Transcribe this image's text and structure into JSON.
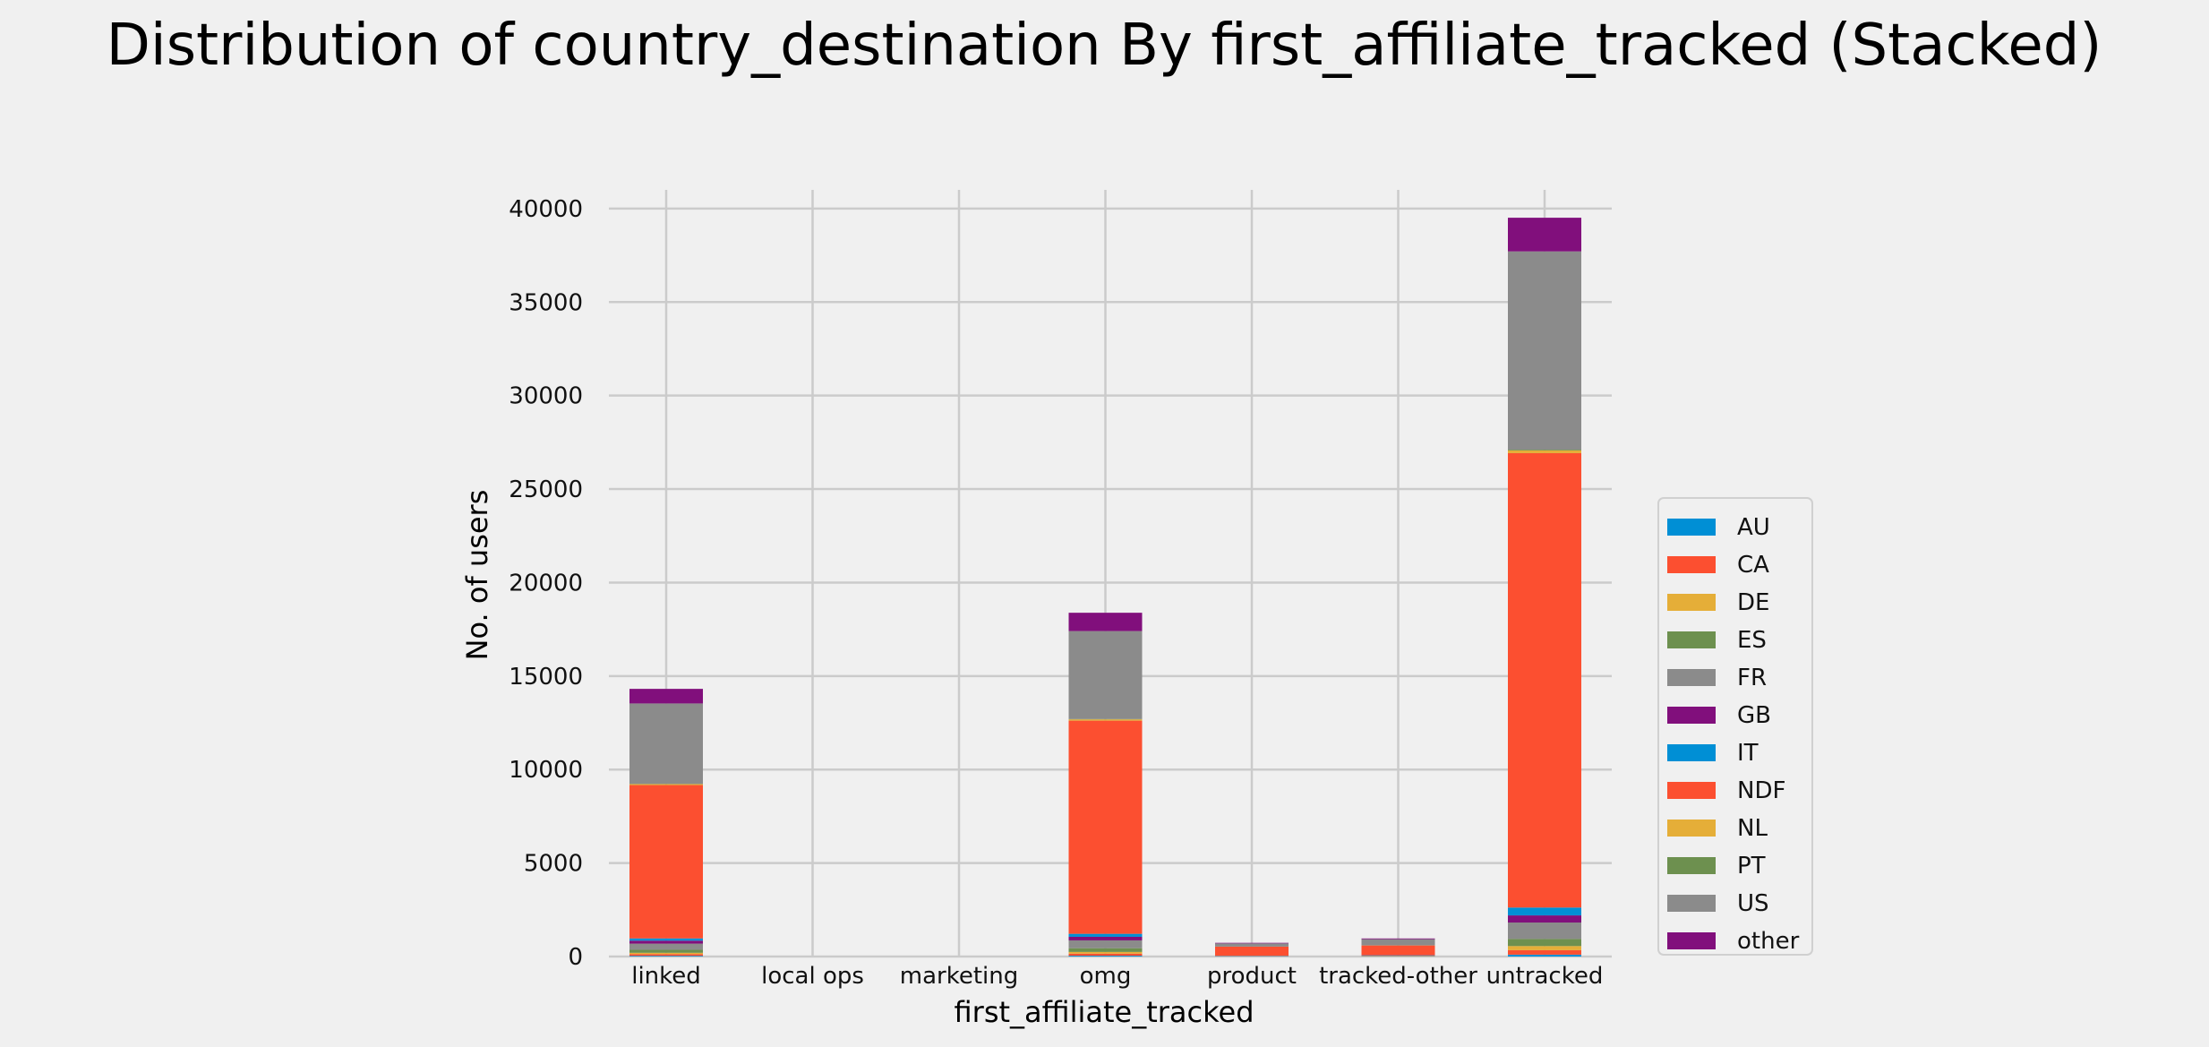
{
  "chart_data": {
    "type": "bar",
    "stacked": true,
    "title": "Distribution of country_destination By first_affiliate_tracked (Stacked)",
    "xlabel": "first_affiliate_tracked",
    "ylabel": "No. of users",
    "ylim": [
      0,
      41000
    ],
    "yticks": [
      0,
      5000,
      10000,
      15000,
      20000,
      25000,
      30000,
      35000,
      40000
    ],
    "grid": true,
    "legend_position": "right",
    "categories": [
      "linked",
      "local ops",
      "marketing",
      "omg",
      "product",
      "tracked-other",
      "untracked"
    ],
    "series": [
      {
        "name": "AU",
        "color": "#008fd5",
        "values": [
          40,
          0,
          0,
          45,
          2,
          3,
          100
        ]
      },
      {
        "name": "CA",
        "color": "#fc4f30",
        "values": [
          90,
          0,
          0,
          110,
          5,
          7,
          240
        ]
      },
      {
        "name": "DE",
        "color": "#e5ae38",
        "values": [
          70,
          0,
          0,
          90,
          4,
          6,
          220
        ]
      },
      {
        "name": "ES",
        "color": "#6d904f",
        "values": [
          160,
          0,
          0,
          200,
          8,
          12,
          380
        ]
      },
      {
        "name": "FR",
        "color": "#8b8b8b",
        "values": [
          330,
          0,
          0,
          420,
          16,
          22,
          880
        ]
      },
      {
        "name": "GB",
        "color": "#810f7c",
        "values": [
          160,
          0,
          0,
          190,
          8,
          12,
          380
        ]
      },
      {
        "name": "IT",
        "color": "#008fd5",
        "values": [
          120,
          0,
          0,
          160,
          6,
          10,
          420
        ]
      },
      {
        "name": "NDF",
        "color": "#fc4f30",
        "values": [
          8200,
          0,
          0,
          11400,
          480,
          520,
          24300
        ]
      },
      {
        "name": "NL",
        "color": "#e5ae38",
        "values": [
          50,
          0,
          0,
          70,
          3,
          4,
          150
        ]
      },
      {
        "name": "PT",
        "color": "#6d904f",
        "values": [
          15,
          0,
          0,
          20,
          1,
          1,
          40
        ]
      },
      {
        "name": "US",
        "color": "#8b8b8b",
        "values": [
          4300,
          0,
          0,
          4700,
          170,
          330,
          10600
        ]
      },
      {
        "name": "other",
        "color": "#810f7c",
        "values": [
          780,
          0,
          0,
          980,
          30,
          40,
          1800
        ]
      }
    ]
  }
}
